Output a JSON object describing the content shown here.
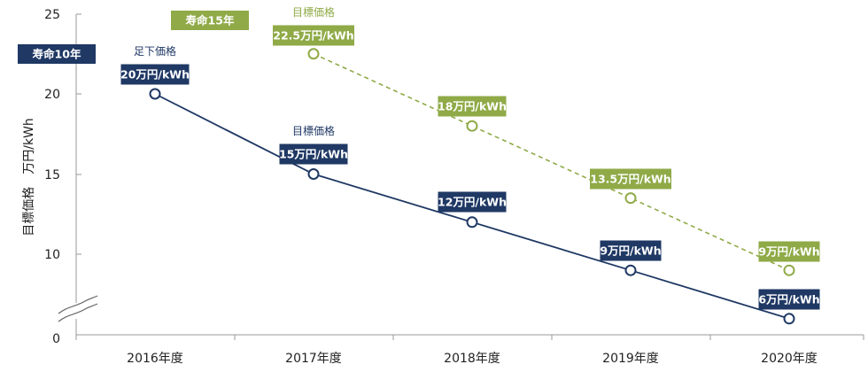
{
  "chart_data": {
    "type": "line",
    "categories": [
      "2016年度",
      "2017年度",
      "2018年度",
      "2019年度",
      "2020年度"
    ],
    "ylabel": "目標価格　万円/kWh",
    "ylim": [
      0,
      25
    ],
    "yticks": [
      0,
      10,
      15,
      20,
      25
    ],
    "axis_break": true,
    "grid": false,
    "colors": {
      "navy": "#1f3864",
      "green": "#8faa47",
      "axis": "#999999"
    },
    "series": [
      {
        "name": "寿命10年",
        "color": "#1f3864",
        "style": "solid",
        "x": [
          "2016年度",
          "2017年度",
          "2018年度",
          "2019年度",
          "2020年度"
        ],
        "values": [
          20,
          15,
          12,
          9,
          6
        ],
        "data_labels": [
          "20万円/kWh",
          "15万円/kWh",
          "12万円/kWh",
          "9万円/kWh",
          "6万円/kWh"
        ]
      },
      {
        "name": "寿命15年",
        "color": "#8faa47",
        "style": "dashed",
        "x": [
          "2017年度",
          "2018年度",
          "2019年度",
          "2020年度"
        ],
        "values": [
          22.5,
          18,
          13.5,
          9
        ],
        "data_labels": [
          "22.5万円/kWh",
          "18万円/kWh",
          "13.5万円/kWh",
          "9万円/kWh"
        ]
      }
    ],
    "annotations": [
      {
        "text": "足下価格",
        "series": 0,
        "point": 0
      },
      {
        "text": "目標価格",
        "series": 0,
        "point": 1
      },
      {
        "text": "目標価格",
        "series": 1,
        "point": 0
      }
    ]
  }
}
